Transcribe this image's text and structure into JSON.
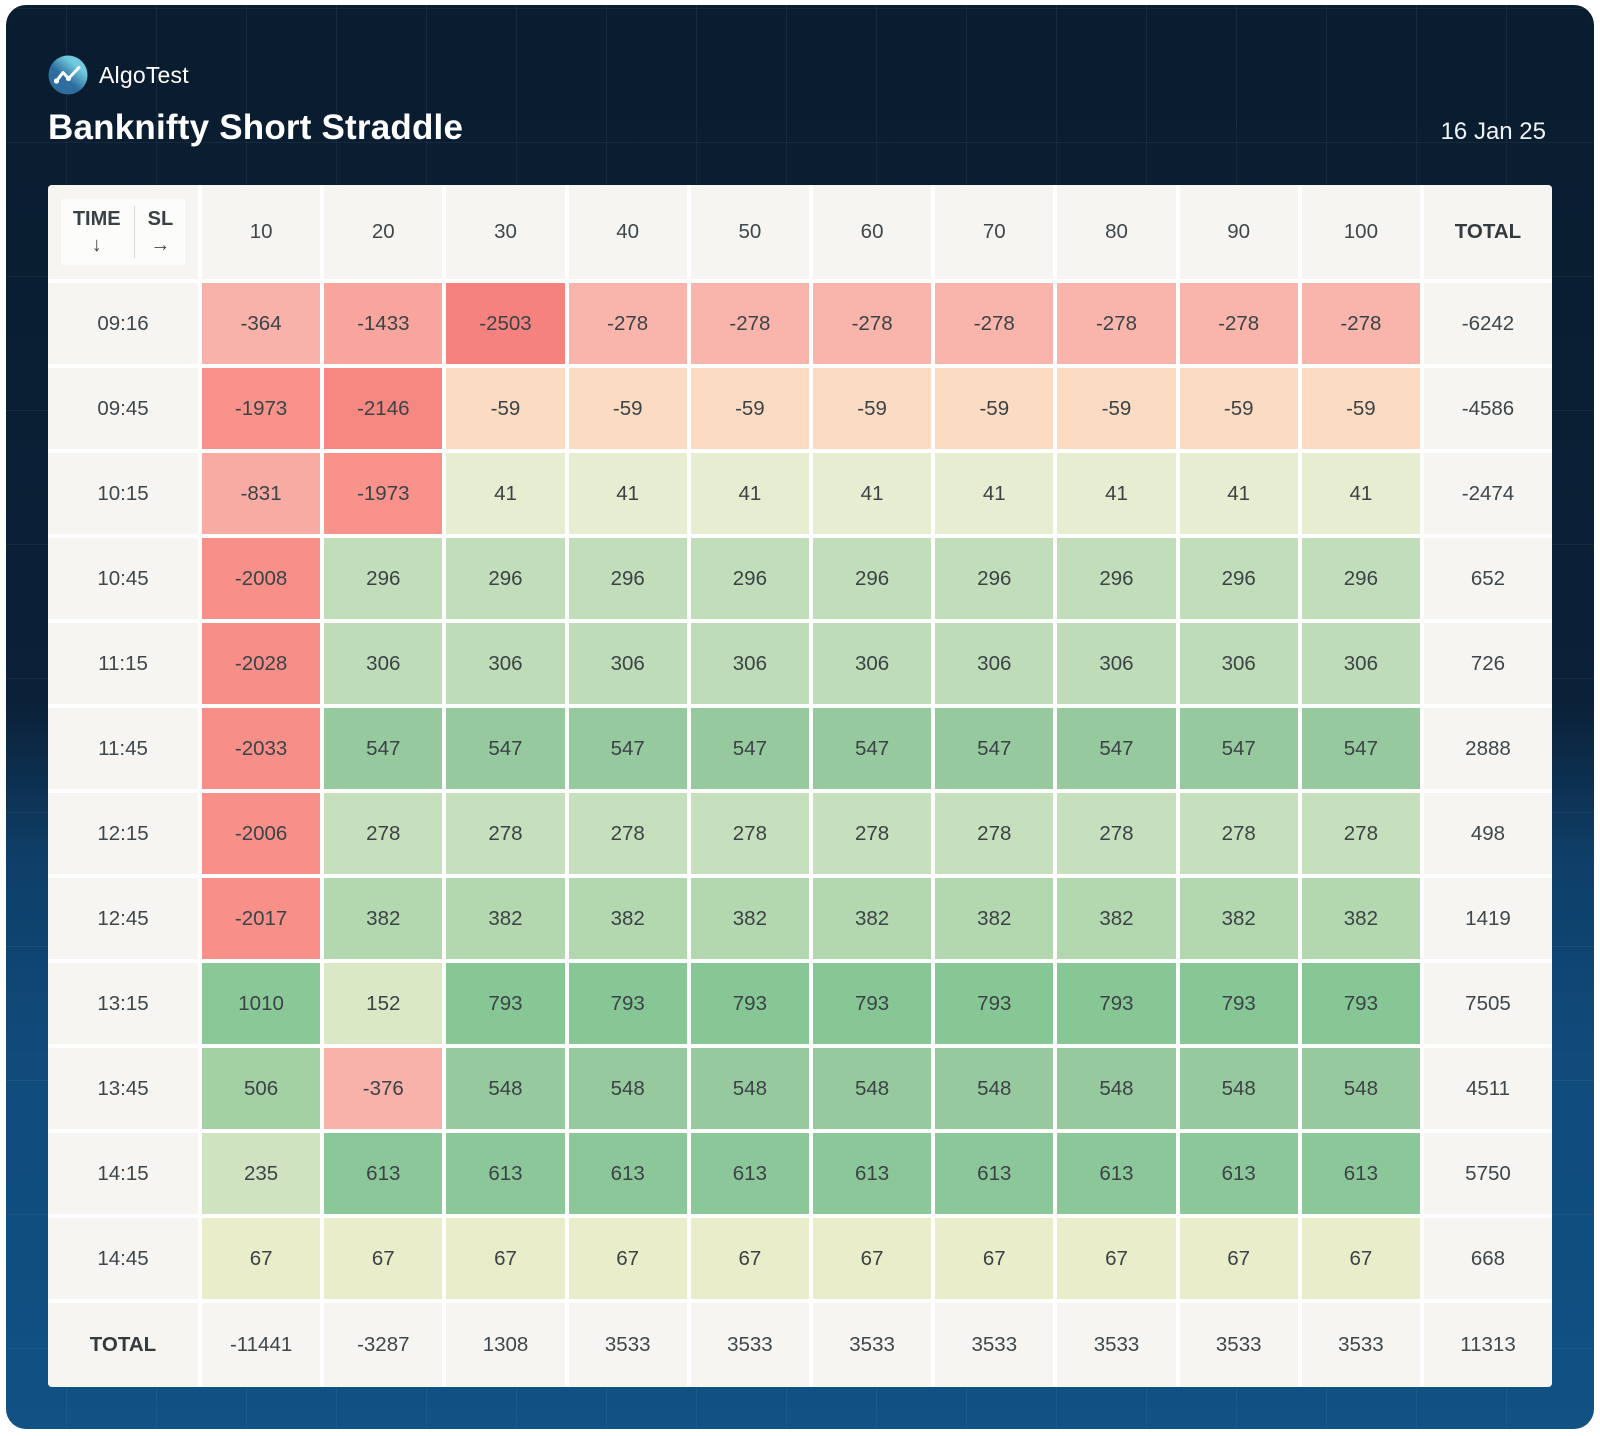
{
  "header": {
    "brand": "AlgoTest",
    "title": "Banknifty Short Straddle",
    "date": "16 Jan 25"
  },
  "table": {
    "corner": {
      "row_label": "TIME",
      "row_arrow": "↓",
      "col_label": "SL",
      "col_arrow": "→"
    },
    "total_label": "TOTAL"
  },
  "colors": {
    "card_gradient": [
      "#0a1c2f",
      "#0b2138",
      "#0e3f68",
      "#115184"
    ],
    "table_surface": "#f6f5f2",
    "grid_gap": "#ffffff",
    "cell_text": "#3f474b",
    "header_text": "#ffffff",
    "brand_teal": "#6fcadd",
    "brand_blue": "#2e6d9e",
    "scale_stops": [
      [
        -2503,
        "#f5827f"
      ],
      [
        -2146,
        "#f68781"
      ],
      [
        -2033,
        "#f88e88"
      ],
      [
        -1973,
        "#f8928b"
      ],
      [
        -1433,
        "#f8a69d"
      ],
      [
        -831,
        "#f8aba2"
      ],
      [
        -376,
        "#f9b2a9"
      ],
      [
        -278,
        "#f9b5ab"
      ],
      [
        -59,
        "#fbdcc3"
      ],
      [
        0,
        "#f4eed6"
      ],
      [
        41,
        "#e7edd0"
      ],
      [
        67,
        "#e9edc9"
      ],
      [
        152,
        "#dae8c6"
      ],
      [
        235,
        "#cfe3c1"
      ],
      [
        278,
        "#c6dfbc"
      ],
      [
        306,
        "#bedcb8"
      ],
      [
        382,
        "#b3d7af"
      ],
      [
        506,
        "#a4d1a4"
      ],
      [
        547,
        "#96ca9e"
      ],
      [
        613,
        "#8cc79a"
      ],
      [
        793,
        "#86c795"
      ],
      [
        1010,
        "#8bc898"
      ]
    ]
  },
  "chart_data": {
    "type": "heatmap",
    "title": "Banknifty Short Straddle",
    "date": "16 Jan 25",
    "x_axis_label": "SL",
    "y_axis_label": "TIME",
    "columns": [
      "10",
      "20",
      "30",
      "40",
      "50",
      "60",
      "70",
      "80",
      "90",
      "100"
    ],
    "rows": [
      "09:16",
      "09:45",
      "10:15",
      "10:45",
      "11:15",
      "11:45",
      "12:15",
      "12:45",
      "13:15",
      "13:45",
      "14:15",
      "14:45"
    ],
    "values": [
      [
        -364,
        -1433,
        -2503,
        -278,
        -278,
        -278,
        -278,
        -278,
        -278,
        -278
      ],
      [
        -1973,
        -2146,
        -59,
        -59,
        -59,
        -59,
        -59,
        -59,
        -59,
        -59
      ],
      [
        -831,
        -1973,
        41,
        41,
        41,
        41,
        41,
        41,
        41,
        41
      ],
      [
        -2008,
        296,
        296,
        296,
        296,
        296,
        296,
        296,
        296,
        296
      ],
      [
        -2028,
        306,
        306,
        306,
        306,
        306,
        306,
        306,
        306,
        306
      ],
      [
        -2033,
        547,
        547,
        547,
        547,
        547,
        547,
        547,
        547,
        547
      ],
      [
        -2006,
        278,
        278,
        278,
        278,
        278,
        278,
        278,
        278,
        278
      ],
      [
        -2017,
        382,
        382,
        382,
        382,
        382,
        382,
        382,
        382,
        382
      ],
      [
        1010,
        152,
        793,
        793,
        793,
        793,
        793,
        793,
        793,
        793
      ],
      [
        506,
        -376,
        548,
        548,
        548,
        548,
        548,
        548,
        548,
        548
      ],
      [
        235,
        613,
        613,
        613,
        613,
        613,
        613,
        613,
        613,
        613
      ],
      [
        67,
        67,
        67,
        67,
        67,
        67,
        67,
        67,
        67,
        67
      ]
    ],
    "row_totals": [
      -6242,
      -4586,
      -2474,
      652,
      726,
      2888,
      498,
      1419,
      7505,
      4511,
      5750,
      668
    ],
    "column_totals": [
      -11441,
      -3287,
      1308,
      3533,
      3533,
      3533,
      3533,
      3533,
      3533,
      3533
    ],
    "grand_total": 11313,
    "legend_position": "none",
    "colormap": {
      "negative": "#f5827f",
      "neutral": "#f4eed6",
      "positive": "#8bc898"
    }
  }
}
